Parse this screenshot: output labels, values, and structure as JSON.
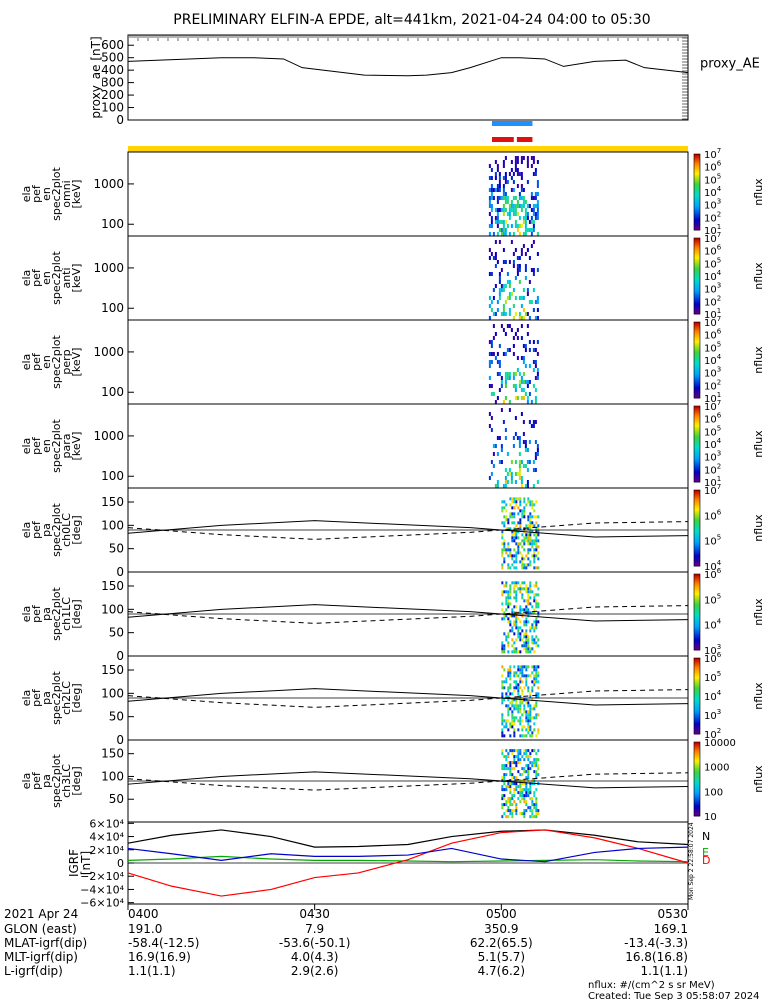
{
  "title": "PRELIMINARY ELFIN-A EPDE, alt=441km, 2021-04-24 04:00 to 05:30",
  "colors": {
    "yellow_bar": "#ffd400",
    "blue_bar": "#1e90ff",
    "red_bar": "#e01010",
    "bfield_N": "#000000",
    "bfield_E": "#00aa00",
    "bfield_D": "#ff0000",
    "bfield_extra": "#0000cc"
  },
  "chart_data": [
    {
      "panel": "proxy_ae",
      "type": "line",
      "ylabel": "proxy_ae [nT]",
      "legend": "proxy_AE",
      "yticks": [
        "600",
        "500",
        "400",
        "300",
        "200",
        "100",
        "0"
      ],
      "ylim": [
        0,
        650
      ],
      "x_minutes": [
        0,
        15,
        20,
        25,
        28,
        38,
        45,
        48,
        52,
        55,
        60,
        63,
        67,
        70,
        75,
        80,
        83,
        90
      ],
      "y": [
        470,
        500,
        500,
        490,
        420,
        360,
        355,
        360,
        380,
        420,
        500,
        500,
        490,
        430,
        470,
        480,
        420,
        380
      ]
    },
    {
      "panel": "omni",
      "type": "heatmap",
      "ylabel": [
        "ela",
        "pef",
        "en",
        "spec2plot",
        "omni",
        "[keV]"
      ],
      "yticks": [
        "1000",
        "100"
      ],
      "zlabel": "nflux",
      "ztick_exponents": [
        "7",
        "6",
        "5",
        "4",
        "3",
        "2",
        "1"
      ]
    },
    {
      "panel": "anti",
      "type": "heatmap",
      "ylabel": [
        "ela",
        "pef",
        "en",
        "spec2plot",
        "anti",
        "[keV]"
      ],
      "yticks": [
        "1000",
        "100"
      ],
      "zlabel": "nflux",
      "ztick_exponents": [
        "7",
        "6",
        "5",
        "4",
        "3",
        "2",
        "1"
      ]
    },
    {
      "panel": "perp",
      "type": "heatmap",
      "ylabel": [
        "ela",
        "pef",
        "en",
        "spec2plot",
        "perp",
        "[keV]"
      ],
      "yticks": [
        "1000",
        "100"
      ],
      "zlabel": "nflux",
      "ztick_exponents": [
        "7",
        "6",
        "5",
        "4",
        "3",
        "2",
        "1"
      ]
    },
    {
      "panel": "para",
      "type": "heatmap",
      "ylabel": [
        "ela",
        "pef",
        "en",
        "spec2plot",
        "para",
        "[keV]"
      ],
      "yticks": [
        "1000",
        "100"
      ],
      "zlabel": "nflux",
      "ztick_exponents": [
        "7",
        "6",
        "5",
        "4",
        "3",
        "2",
        "1"
      ]
    },
    {
      "panel": "ch0LC",
      "type": "heatmap",
      "ylabel": [
        "ela",
        "pef",
        "pa",
        "spec2plot",
        "ch0LC",
        "[deg]"
      ],
      "yticks": [
        "150",
        "100",
        "50",
        "0"
      ],
      "ylim": [
        0,
        180
      ],
      "zlabel": "nflux",
      "ztick_exponents": [
        "7",
        "6",
        "5",
        "4"
      ],
      "lossCone_solid_deg": [
        83,
        100,
        110,
        95,
        75,
        78
      ],
      "lossCone_dashed_deg": [
        95,
        80,
        70,
        85,
        105,
        108
      ],
      "line_x_minutes": [
        0,
        15,
        30,
        55,
        75,
        90
      ]
    },
    {
      "panel": "ch1LC",
      "type": "heatmap",
      "ylabel": [
        "ela",
        "pef",
        "pa",
        "spec2plot",
        "ch1LC",
        "[deg]"
      ],
      "yticks": [
        "150",
        "100",
        "50",
        "0"
      ],
      "ylim": [
        0,
        180
      ],
      "zlabel": "nflux",
      "ztick_exponents": [
        "6",
        "5",
        "4",
        "3"
      ],
      "lossCone_solid_deg": [
        83,
        100,
        110,
        95,
        75,
        78
      ],
      "lossCone_dashed_deg": [
        95,
        80,
        70,
        85,
        105,
        108
      ],
      "line_x_minutes": [
        0,
        15,
        30,
        55,
        75,
        90
      ]
    },
    {
      "panel": "ch2LC",
      "type": "heatmap",
      "ylabel": [
        "ela",
        "pef",
        "pa",
        "spec2plot",
        "ch2LC",
        "[deg]"
      ],
      "yticks": [
        "150",
        "100",
        "50",
        "0"
      ],
      "ylim": [
        0,
        180
      ],
      "zlabel": "nflux",
      "ztick_exponents": [
        "6",
        "5",
        "4",
        "3",
        "2"
      ],
      "lossCone_solid_deg": [
        83,
        100,
        110,
        95,
        75,
        78
      ],
      "lossCone_dashed_deg": [
        95,
        80,
        70,
        85,
        105,
        108
      ],
      "line_x_minutes": [
        0,
        15,
        30,
        55,
        75,
        90
      ]
    },
    {
      "panel": "ch3LC",
      "type": "heatmap",
      "ylabel": [
        "ela",
        "pef",
        "pa",
        "spec2plot",
        "ch3LC",
        "[deg]"
      ],
      "yticks": [
        "150",
        "100",
        "50"
      ],
      "ylim": [
        0,
        180
      ],
      "zlabel": "nflux",
      "zticks_linear": [
        "10000",
        "1000",
        "100",
        "10"
      ],
      "lossCone_solid_deg": [
        83,
        100,
        110,
        95,
        75,
        78
      ],
      "lossCone_dashed_deg": [
        95,
        80,
        70,
        85,
        105,
        108
      ],
      "line_x_minutes": [
        0,
        15,
        30,
        55,
        75,
        90
      ]
    },
    {
      "panel": "IGRF",
      "type": "line",
      "ylabel": [
        "IGRF",
        "[nT]"
      ],
      "yticks": [
        "6×10⁴",
        "4×10⁴",
        "2×10⁴",
        "0",
        "−2×10⁴",
        "−4×10⁴",
        "−6×10⁴"
      ],
      "ylim": [
        -62000,
        62000
      ],
      "legend": [
        "N",
        "E",
        "D"
      ],
      "x_minutes": [
        0,
        7,
        15,
        23,
        30,
        37,
        45,
        52,
        60,
        67,
        75,
        82,
        90
      ],
      "series": [
        {
          "name": "N",
          "values": [
            30000,
            42000,
            50000,
            40000,
            24000,
            25000,
            28000,
            40000,
            48000,
            50000,
            42000,
            32000,
            28000
          ]
        },
        {
          "name": "E",
          "values": [
            4000,
            6000,
            10000,
            6000,
            4000,
            4000,
            3000,
            2000,
            3000,
            4000,
            5000,
            3000,
            2000
          ]
        },
        {
          "name": "D",
          "values": [
            -15000,
            -35000,
            -50000,
            -40000,
            -22000,
            -15000,
            5000,
            30000,
            46000,
            50000,
            38000,
            22000,
            0
          ]
        },
        {
          "name": "",
          "values": [
            22000,
            14000,
            4000,
            14000,
            10000,
            10000,
            12000,
            22000,
            6000,
            2000,
            16000,
            22000,
            24000
          ]
        }
      ]
    }
  ],
  "xaxis": {
    "ticks": [
      "0400",
      "0430",
      "0500",
      "0530"
    ],
    "date_label": "2021 Apr 24",
    "rows": [
      {
        "label": "GLON (east)",
        "values": [
          "191.0",
          "7.9",
          "350.9",
          "169.1"
        ]
      },
      {
        "label": "MLAT-igrf(dip)",
        "values": [
          "-58.4(-12.5)",
          "-53.6(-50.1)",
          "62.2(65.5)",
          "-13.4(-3.3)"
        ]
      },
      {
        "label": "MLT-igrf(dip)",
        "values": [
          "16.9(16.9)",
          "4.0(4.3)",
          "5.1(5.7)",
          "16.8(16.8)"
        ]
      },
      {
        "label": "L-igrf(dip)",
        "values": [
          "1.1(1.1)",
          "2.9(2.6)",
          "4.7(6.2)",
          "1.1(1.1)"
        ]
      }
    ]
  },
  "footer": {
    "units": "nflux: #/(cm^2 s sr MeV)",
    "created": "Created: Tue Sep  3 05:58:07 2024",
    "side_stamp": "Mon Sep  2 22:58:07 2024"
  }
}
